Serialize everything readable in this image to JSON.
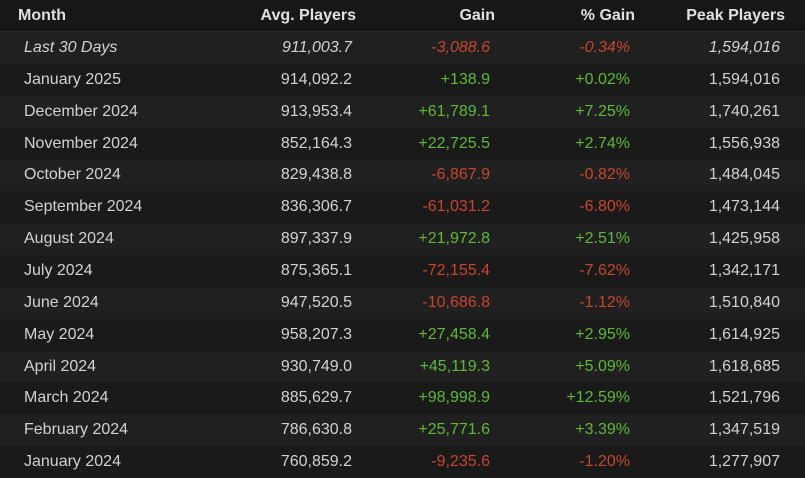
{
  "table": {
    "header": [
      "Month",
      "Avg. Players",
      "Gain",
      "% Gain",
      "Peak Players"
    ],
    "rows": [
      [
        "Last 30 Days",
        "911,003.7",
        "-3,088.6",
        "-0.34%",
        "1,594,016"
      ],
      [
        "January 2025",
        "914,092.2",
        "+138.9",
        "+0.02%",
        "1,594,016"
      ],
      [
        "December 2024",
        "913,953.4",
        "+61,789.1",
        "+7.25%",
        "1,740,261"
      ],
      [
        "November 2024",
        "852,164.3",
        "+22,725.5",
        "+2.74%",
        "1,556,938"
      ],
      [
        "October 2024",
        "829,438.8",
        "-6,867.9",
        "-0.82%",
        "1,484,045"
      ],
      [
        "September 2024",
        "836,306.7",
        "-61,031.2",
        "-6.80%",
        "1,473,144"
      ],
      [
        "August 2024",
        "897,337.9",
        "+21,972.8",
        "+2.51%",
        "1,425,958"
      ],
      [
        "July 2024",
        "875,365.1",
        "-72,155.4",
        "-7.62%",
        "1,342,171"
      ],
      [
        "June 2024",
        "947,520.5",
        "-10,686.8",
        "-1.12%",
        "1,510,840"
      ],
      [
        "May 2024",
        "958,207.3",
        "+27,458.4",
        "+2.95%",
        "1,614,925"
      ],
      [
        "April 2024",
        "930,749.0",
        "+45,119.3",
        "+5.09%",
        "1,618,685"
      ],
      [
        "March 2024",
        "885,629.7",
        "+98,998.9",
        "+12.59%",
        "1,521,796"
      ],
      [
        "February 2024",
        "786,630.8",
        "+25,771.6",
        "+3.39%",
        "1,347,519"
      ],
      [
        "January 2024",
        "760,859.2",
        "-9,235.6",
        "-1.20%",
        "1,277,907"
      ]
    ]
  }
}
